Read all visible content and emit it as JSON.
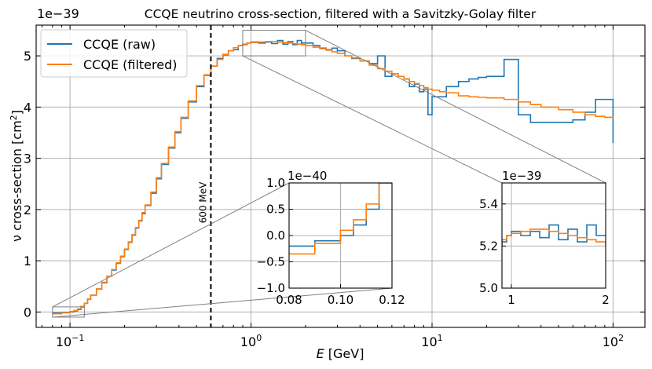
{
  "chart_data": {
    "type": "line",
    "title": "CCQE neutrino cross-section, filtered with a Savitzky-Golay filter",
    "xlabel": "E [GeV]",
    "xlabel_symbol": "E",
    "xlabel_unit": "[GeV]",
    "ylabel": "ν cross-section [cm²]",
    "ylabel_main": "ν cross-section [cm",
    "ylabel_sup": "2",
    "ylabel_end": "]",
    "y_offset_text": "1e−39",
    "xscale": "log",
    "xlim": [
      0.065,
      150
    ],
    "ylim": [
      -0.3,
      5.6
    ],
    "grid": true,
    "legend_position": "top-left",
    "x_ticks": [
      {
        "value": 0.1,
        "base": "10",
        "exp": "−1"
      },
      {
        "value": 1,
        "base": "10",
        "exp": "0"
      },
      {
        "value": 10,
        "base": "10",
        "exp": "1"
      },
      {
        "value": 100,
        "base": "10",
        "exp": "2"
      }
    ],
    "y_ticks": [
      {
        "value": 0,
        "label": "0"
      },
      {
        "value": 1,
        "label": "1"
      },
      {
        "value": 2,
        "label": "2"
      },
      {
        "value": 3,
        "label": "3"
      },
      {
        "value": 4,
        "label": "4"
      },
      {
        "value": 5,
        "label": "5"
      }
    ],
    "vline": {
      "x": 0.6,
      "label": "600 MeV"
    },
    "series": [
      {
        "name": "CCQE (raw)",
        "color": "#1f77b4",
        "x": [
          0.08,
          0.09,
          0.1,
          0.105,
          0.11,
          0.115,
          0.12,
          0.125,
          0.13,
          0.14,
          0.15,
          0.16,
          0.17,
          0.18,
          0.19,
          0.2,
          0.21,
          0.22,
          0.23,
          0.24,
          0.25,
          0.26,
          0.28,
          0.3,
          0.32,
          0.35,
          0.38,
          0.41,
          0.45,
          0.5,
          0.55,
          0.6,
          0.65,
          0.7,
          0.75,
          0.8,
          0.85,
          0.9,
          0.95,
          1.0,
          1.1,
          1.2,
          1.3,
          1.4,
          1.5,
          1.6,
          1.7,
          1.8,
          1.9,
          2.0,
          2.2,
          2.4,
          2.6,
          2.8,
          3.0,
          3.3,
          3.6,
          4.0,
          4.5,
          5.0,
          5.5,
          6.0,
          6.5,
          7.0,
          7.5,
          8.0,
          8.5,
          9.0,
          9.5,
          10,
          11,
          12,
          14,
          16,
          18,
          20,
          25,
          30,
          35,
          40,
          50,
          60,
          70,
          80,
          90,
          100
        ],
        "y": [
          -0.02,
          -0.01,
          0.0,
          0.02,
          0.05,
          0.1,
          0.17,
          0.25,
          0.33,
          0.45,
          0.57,
          0.7,
          0.82,
          0.95,
          1.08,
          1.22,
          1.36,
          1.5,
          1.64,
          1.78,
          1.92,
          2.08,
          2.32,
          2.6,
          2.88,
          3.2,
          3.5,
          3.78,
          4.1,
          4.4,
          4.62,
          4.8,
          4.95,
          5.02,
          5.1,
          5.12,
          5.2,
          5.22,
          5.25,
          5.27,
          5.25,
          5.27,
          5.24,
          5.3,
          5.23,
          5.28,
          5.22,
          5.3,
          5.25,
          5.25,
          5.2,
          5.15,
          5.12,
          5.15,
          5.1,
          5.0,
          4.95,
          4.9,
          4.85,
          5.0,
          4.6,
          4.65,
          4.6,
          4.55,
          4.4,
          4.45,
          4.3,
          4.35,
          3.85,
          4.2,
          4.2,
          4.4,
          4.5,
          4.55,
          4.58,
          4.6,
          4.93,
          3.85,
          3.7,
          3.7,
          3.7,
          3.75,
          3.9,
          4.15,
          4.15,
          3.3
        ]
      },
      {
        "name": "CCQE (filtered)",
        "color": "#ff7f0e",
        "x": [
          0.08,
          0.09,
          0.1,
          0.105,
          0.11,
          0.115,
          0.12,
          0.125,
          0.13,
          0.14,
          0.15,
          0.16,
          0.17,
          0.18,
          0.19,
          0.2,
          0.21,
          0.22,
          0.23,
          0.24,
          0.25,
          0.26,
          0.28,
          0.3,
          0.32,
          0.35,
          0.38,
          0.41,
          0.45,
          0.5,
          0.55,
          0.6,
          0.65,
          0.7,
          0.75,
          0.8,
          0.85,
          0.9,
          0.95,
          1.0,
          1.1,
          1.2,
          1.3,
          1.4,
          1.5,
          1.6,
          1.7,
          1.8,
          1.9,
          2.0,
          2.2,
          2.4,
          2.6,
          2.8,
          3.0,
          3.3,
          3.6,
          4.0,
          4.5,
          5.0,
          5.5,
          6.0,
          6.5,
          7.0,
          7.5,
          8.0,
          8.5,
          9.0,
          9.5,
          10,
          11,
          12,
          14,
          16,
          18,
          20,
          25,
          30,
          35,
          40,
          50,
          60,
          70,
          80,
          90,
          100
        ],
        "y": [
          -0.035,
          -0.015,
          0.01,
          0.03,
          0.06,
          0.11,
          0.17,
          0.25,
          0.33,
          0.45,
          0.58,
          0.7,
          0.83,
          0.96,
          1.09,
          1.23,
          1.37,
          1.51,
          1.65,
          1.79,
          1.94,
          2.09,
          2.34,
          2.62,
          2.9,
          3.22,
          3.52,
          3.8,
          4.12,
          4.42,
          4.63,
          4.8,
          4.93,
          5.03,
          5.1,
          5.16,
          5.2,
          5.23,
          5.25,
          5.26,
          5.27,
          5.28,
          5.28,
          5.27,
          5.26,
          5.25,
          5.24,
          5.23,
          5.22,
          5.2,
          5.17,
          5.14,
          5.11,
          5.08,
          5.05,
          5.0,
          4.96,
          4.9,
          4.82,
          4.75,
          4.7,
          4.65,
          4.6,
          4.55,
          4.5,
          4.46,
          4.42,
          4.38,
          4.35,
          4.33,
          4.3,
          4.28,
          4.22,
          4.2,
          4.19,
          4.18,
          4.15,
          4.1,
          4.05,
          4.0,
          3.95,
          3.9,
          3.85,
          3.82,
          3.8,
          3.77
        ]
      }
    ],
    "insets": [
      {
        "name": "low-energy-zoom",
        "y_offset_text": "1e−40",
        "xlim": [
          0.08,
          0.12
        ],
        "ylim": [
          -1.0,
          1.0
        ],
        "x_ticks": [
          {
            "value": 0.08,
            "label": "0.08"
          },
          {
            "value": 0.1,
            "label": "0.10"
          },
          {
            "value": 0.12,
            "label": "0.12"
          }
        ],
        "y_ticks": [
          {
            "value": -1.0,
            "label": "−1.0"
          },
          {
            "value": -0.5,
            "label": "−0.5"
          },
          {
            "value": 0.0,
            "label": "0.0"
          },
          {
            "value": 0.5,
            "label": "0.5"
          },
          {
            "value": 1.0,
            "label": "1.0"
          }
        ],
        "source_region": {
          "xlim": [
            0.08,
            0.12
          ],
          "ylim": [
            -0.1,
            0.1
          ]
        }
      },
      {
        "name": "peak-zoom",
        "y_offset_text": "1e−39",
        "xlim": [
          0.9,
          2.0
        ],
        "ylim": [
          5.0,
          5.5
        ],
        "x_ticks": [
          {
            "value": 1,
            "label": "1"
          },
          {
            "value": 2,
            "label": "2"
          }
        ],
        "y_ticks": [
          {
            "value": 5.0,
            "label": "5.0"
          },
          {
            "value": 5.2,
            "label": "5.2"
          },
          {
            "value": 5.4,
            "label": "5.4"
          }
        ],
        "source_region": {
          "xlim": [
            0.9,
            2.0
          ],
          "ylim": [
            5.0,
            5.5
          ]
        }
      }
    ]
  }
}
